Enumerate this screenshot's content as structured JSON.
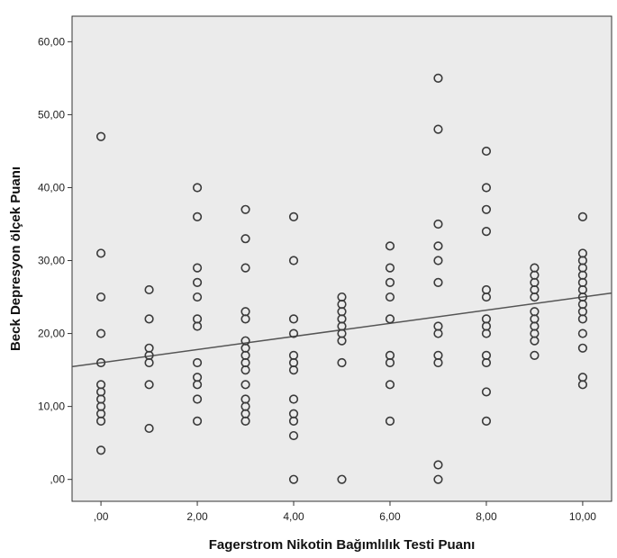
{
  "chart_data": {
    "type": "scatter",
    "title": "",
    "xlabel": "Fagerstrom Nikotin Bağımlılık Testi Puanı",
    "ylabel": "Beck Depresyon ölçek Puanı",
    "xlim": [
      -0.6,
      10.6
    ],
    "ylim": [
      -3,
      63.5
    ],
    "x_ticks": [
      0,
      2,
      4,
      6,
      8,
      10
    ],
    "x_tick_labels": [
      ",00",
      "2,00",
      "4,00",
      "6,00",
      "8,00",
      "10,00"
    ],
    "y_ticks": [
      0,
      10,
      20,
      30,
      40,
      50,
      60
    ],
    "y_tick_labels": [
      ",00",
      "10,00",
      "20,00",
      "30,00",
      "40,00",
      "50,00",
      "60,00"
    ],
    "grid": false,
    "plot_background": "#ebebeb",
    "marker_color": "#3a3a3a",
    "line_color": "#555555",
    "fit_line": {
      "intercept": 16.0,
      "slope": 0.9
    },
    "points": [
      [
        0,
        47
      ],
      [
        0,
        31
      ],
      [
        0,
        25
      ],
      [
        0,
        20
      ],
      [
        0,
        16
      ],
      [
        0,
        13
      ],
      [
        0,
        12
      ],
      [
        0,
        11
      ],
      [
        0,
        10
      ],
      [
        0,
        9
      ],
      [
        0,
        8
      ],
      [
        0,
        4
      ],
      [
        1,
        26
      ],
      [
        1,
        22
      ],
      [
        1,
        18
      ],
      [
        1,
        17
      ],
      [
        1,
        16
      ],
      [
        1,
        13
      ],
      [
        1,
        7
      ],
      [
        2,
        40
      ],
      [
        2,
        36
      ],
      [
        2,
        29
      ],
      [
        2,
        27
      ],
      [
        2,
        25
      ],
      [
        2,
        22
      ],
      [
        2,
        21
      ],
      [
        2,
        16
      ],
      [
        2,
        14
      ],
      [
        2,
        13
      ],
      [
        2,
        11
      ],
      [
        2,
        8
      ],
      [
        3,
        37
      ],
      [
        3,
        33
      ],
      [
        3,
        29
      ],
      [
        3,
        23
      ],
      [
        3,
        22
      ],
      [
        3,
        19
      ],
      [
        3,
        18
      ],
      [
        3,
        17
      ],
      [
        3,
        16
      ],
      [
        3,
        15
      ],
      [
        3,
        13
      ],
      [
        3,
        11
      ],
      [
        3,
        10
      ],
      [
        3,
        9
      ],
      [
        3,
        8
      ],
      [
        4,
        36
      ],
      [
        4,
        30
      ],
      [
        4,
        22
      ],
      [
        4,
        20
      ],
      [
        4,
        17
      ],
      [
        4,
        16
      ],
      [
        4,
        15
      ],
      [
        4,
        11
      ],
      [
        4,
        9
      ],
      [
        4,
        8
      ],
      [
        4,
        6
      ],
      [
        4,
        0
      ],
      [
        5,
        25
      ],
      [
        5,
        24
      ],
      [
        5,
        23
      ],
      [
        5,
        22
      ],
      [
        5,
        21
      ],
      [
        5,
        20
      ],
      [
        5,
        19
      ],
      [
        5,
        16
      ],
      [
        5,
        0
      ],
      [
        6,
        32
      ],
      [
        6,
        29
      ],
      [
        6,
        27
      ],
      [
        6,
        25
      ],
      [
        6,
        22
      ],
      [
        6,
        17
      ],
      [
        6,
        16
      ],
      [
        6,
        13
      ],
      [
        6,
        8
      ],
      [
        7,
        55
      ],
      [
        7,
        48
      ],
      [
        7,
        35
      ],
      [
        7,
        32
      ],
      [
        7,
        30
      ],
      [
        7,
        27
      ],
      [
        7,
        21
      ],
      [
        7,
        20
      ],
      [
        7,
        17
      ],
      [
        7,
        16
      ],
      [
        7,
        2
      ],
      [
        7,
        0
      ],
      [
        8,
        45
      ],
      [
        8,
        40
      ],
      [
        8,
        37
      ],
      [
        8,
        34
      ],
      [
        8,
        26
      ],
      [
        8,
        25
      ],
      [
        8,
        22
      ],
      [
        8,
        21
      ],
      [
        8,
        20
      ],
      [
        8,
        17
      ],
      [
        8,
        16
      ],
      [
        8,
        12
      ],
      [
        8,
        8
      ],
      [
        9,
        29
      ],
      [
        9,
        28
      ],
      [
        9,
        27
      ],
      [
        9,
        26
      ],
      [
        9,
        25
      ],
      [
        9,
        23
      ],
      [
        9,
        22
      ],
      [
        9,
        21
      ],
      [
        9,
        20
      ],
      [
        9,
        19
      ],
      [
        9,
        17
      ],
      [
        10,
        36
      ],
      [
        10,
        31
      ],
      [
        10,
        30
      ],
      [
        10,
        29
      ],
      [
        10,
        28
      ],
      [
        10,
        27
      ],
      [
        10,
        26
      ],
      [
        10,
        25
      ],
      [
        10,
        24
      ],
      [
        10,
        23
      ],
      [
        10,
        22
      ],
      [
        10,
        20
      ],
      [
        10,
        18
      ],
      [
        10,
        14
      ],
      [
        10,
        13
      ]
    ]
  }
}
